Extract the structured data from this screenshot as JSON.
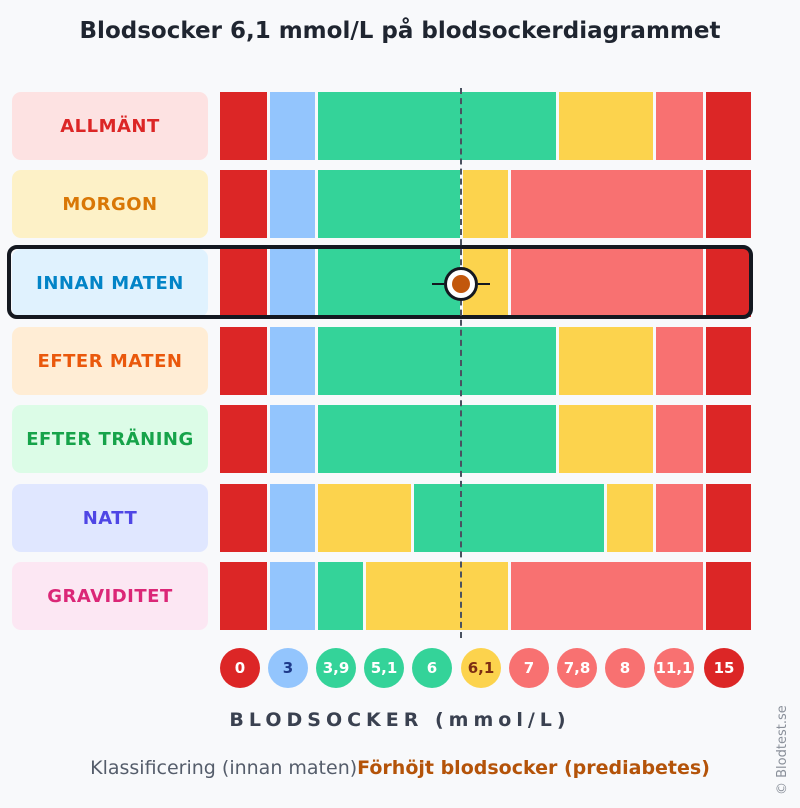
{
  "title": "Blodsocker 6,1 mmol/L på blodsockerdiagrammet",
  "chart_data": {
    "type": "bar",
    "title": "Blodsocker 6,1 mmol/L på blodsockerdiagrammet",
    "xlabel": "BLODSOCKER (mmol/L)",
    "x_tick_labels": [
      "0",
      "3",
      "3,9",
      "5,1",
      "6",
      "6,1",
      "7",
      "7,8",
      "8",
      "11,1",
      "15"
    ],
    "current_value": 6.1,
    "highlighted_row": "INNAN MATEN",
    "rows": [
      {
        "label": "ALLMÄNT",
        "segments": [
          {
            "from_tick": 0,
            "to_tick": 1,
            "color": "#dc2626"
          },
          {
            "from_tick": 1,
            "to_tick": 2,
            "color": "#93c5fd"
          },
          {
            "from_tick": 2,
            "to_tick": 7,
            "color": "#34d399"
          },
          {
            "from_tick": 7,
            "to_tick": 9,
            "color": "#fcd34d"
          },
          {
            "from_tick": 9,
            "to_tick": 10,
            "color": "#f87171"
          },
          {
            "from_tick": 10,
            "to_tick": 11,
            "color": "#dc2626"
          }
        ]
      },
      {
        "label": "MORGON",
        "segments": [
          {
            "from_tick": 0,
            "to_tick": 1,
            "color": "#dc2626"
          },
          {
            "from_tick": 1,
            "to_tick": 2,
            "color": "#93c5fd"
          },
          {
            "from_tick": 2,
            "to_tick": 5,
            "color": "#34d399"
          },
          {
            "from_tick": 5,
            "to_tick": 6,
            "color": "#fcd34d"
          },
          {
            "from_tick": 6,
            "to_tick": 10,
            "color": "#f87171"
          },
          {
            "from_tick": 10,
            "to_tick": 11,
            "color": "#dc2626"
          }
        ]
      },
      {
        "label": "INNAN MATEN",
        "segments": [
          {
            "from_tick": 0,
            "to_tick": 1,
            "color": "#dc2626"
          },
          {
            "from_tick": 1,
            "to_tick": 2,
            "color": "#93c5fd"
          },
          {
            "from_tick": 2,
            "to_tick": 5,
            "color": "#34d399"
          },
          {
            "from_tick": 5,
            "to_tick": 6,
            "color": "#fcd34d"
          },
          {
            "from_tick": 6,
            "to_tick": 10,
            "color": "#f87171"
          },
          {
            "from_tick": 10,
            "to_tick": 11,
            "color": "#dc2626"
          }
        ]
      },
      {
        "label": "EFTER MATEN",
        "segments": [
          {
            "from_tick": 0,
            "to_tick": 1,
            "color": "#dc2626"
          },
          {
            "from_tick": 1,
            "to_tick": 2,
            "color": "#93c5fd"
          },
          {
            "from_tick": 2,
            "to_tick": 7,
            "color": "#34d399"
          },
          {
            "from_tick": 7,
            "to_tick": 9,
            "color": "#fcd34d"
          },
          {
            "from_tick": 9,
            "to_tick": 10,
            "color": "#f87171"
          },
          {
            "from_tick": 10,
            "to_tick": 11,
            "color": "#dc2626"
          }
        ]
      },
      {
        "label": "EFTER TRÄNING",
        "segments": [
          {
            "from_tick": 0,
            "to_tick": 1,
            "color": "#dc2626"
          },
          {
            "from_tick": 1,
            "to_tick": 2,
            "color": "#93c5fd"
          },
          {
            "from_tick": 2,
            "to_tick": 7,
            "color": "#34d399"
          },
          {
            "from_tick": 7,
            "to_tick": 9,
            "color": "#fcd34d"
          },
          {
            "from_tick": 9,
            "to_tick": 10,
            "color": "#f87171"
          },
          {
            "from_tick": 10,
            "to_tick": 11,
            "color": "#dc2626"
          }
        ]
      },
      {
        "label": "NATT",
        "segments": [
          {
            "from_tick": 0,
            "to_tick": 1,
            "color": "#dc2626"
          },
          {
            "from_tick": 1,
            "to_tick": 2,
            "color": "#93c5fd"
          },
          {
            "from_tick": 2,
            "to_tick": 4,
            "color": "#fcd34d"
          },
          {
            "from_tick": 4,
            "to_tick": 8,
            "color": "#34d399"
          },
          {
            "from_tick": 8,
            "to_tick": 9,
            "color": "#fcd34d"
          },
          {
            "from_tick": 9,
            "to_tick": 10,
            "color": "#f87171"
          },
          {
            "from_tick": 10,
            "to_tick": 11,
            "color": "#dc2626"
          }
        ]
      },
      {
        "label": "GRAVIDITET",
        "segments": [
          {
            "from_tick": 0,
            "to_tick": 1,
            "color": "#dc2626"
          },
          {
            "from_tick": 1,
            "to_tick": 2,
            "color": "#93c5fd"
          },
          {
            "from_tick": 2,
            "to_tick": 3,
            "color": "#34d399"
          },
          {
            "from_tick": 3,
            "to_tick": 6,
            "color": "#fcd34d"
          },
          {
            "from_tick": 6,
            "to_tick": 10,
            "color": "#f87171"
          },
          {
            "from_tick": 10,
            "to_tick": 11,
            "color": "#dc2626"
          }
        ]
      }
    ]
  },
  "row_styles": [
    {
      "bg": "#fde2e2",
      "fg": "#dc2626"
    },
    {
      "bg": "#fdf1c7",
      "fg": "#d97706"
    },
    {
      "bg": "#e0f2fe",
      "fg": "#0284c7"
    },
    {
      "bg": "#ffedd5",
      "fg": "#ea580c"
    },
    {
      "bg": "#dcfce7",
      "fg": "#16a34a"
    },
    {
      "bg": "#e0e7ff",
      "fg": "#4f46e5"
    },
    {
      "bg": "#fce7f3",
      "fg": "#db2777"
    }
  ],
  "tick_styles": [
    {
      "bg": "#dc2626",
      "fg": "#ffffff"
    },
    {
      "bg": "#93c5fd",
      "fg": "#1e3a8a"
    },
    {
      "bg": "#34d399",
      "fg": "#ffffff"
    },
    {
      "bg": "#34d399",
      "fg": "#ffffff"
    },
    {
      "bg": "#34d399",
      "fg": "#ffffff"
    },
    {
      "bg": "#fcd34d",
      "fg": "#7c2d12"
    },
    {
      "bg": "#f87171",
      "fg": "#ffffff"
    },
    {
      "bg": "#f87171",
      "fg": "#ffffff"
    },
    {
      "bg": "#f87171",
      "fg": "#ffffff"
    },
    {
      "bg": "#f87171",
      "fg": "#ffffff"
    },
    {
      "bg": "#dc2626",
      "fg": "#ffffff"
    }
  ],
  "classification": {
    "prefix": "Klassificering (innan maten)",
    "value": "Förhöjt blodsocker (prediabetes)"
  },
  "copyright": "© Blodtest.se"
}
